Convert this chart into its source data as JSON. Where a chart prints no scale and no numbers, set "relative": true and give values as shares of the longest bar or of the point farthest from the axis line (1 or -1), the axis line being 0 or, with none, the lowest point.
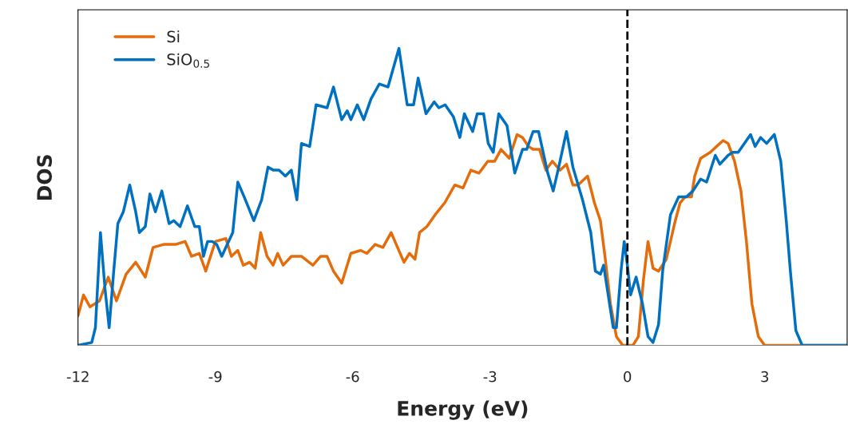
{
  "chart_data": {
    "type": "line",
    "relative": true,
    "xlabel": "Energy (eV)",
    "ylabel": "DOS",
    "xlim": [
      -12,
      4.8
    ],
    "xticks": [
      -12,
      -9,
      -6,
      -3,
      0,
      3
    ],
    "grid": false,
    "legend": "top left",
    "marker": "none",
    "line_style": "solid",
    "ref_lines": [
      {
        "axis": "x",
        "value": 0,
        "color": "#000000",
        "line_style": "dashed"
      }
    ],
    "series": [
      {
        "name": "Si",
        "color": "#e46c0a",
        "x": [
          -12.0,
          -11.88,
          -11.74,
          -11.53,
          -11.34,
          -11.16,
          -10.95,
          -10.74,
          -10.53,
          -10.36,
          -10.13,
          -9.87,
          -9.66,
          -9.52,
          -9.35,
          -9.21,
          -9.0,
          -8.77,
          -8.65,
          -8.51,
          -8.39,
          -8.25,
          -8.13,
          -8.01,
          -7.87,
          -7.74,
          -7.64,
          -7.52,
          -7.34,
          -7.12,
          -6.87,
          -6.7,
          -6.56,
          -6.42,
          -6.24,
          -6.04,
          -5.83,
          -5.69,
          -5.51,
          -5.34,
          -5.16,
          -5.02,
          -4.88,
          -4.76,
          -4.64,
          -4.54,
          -4.38,
          -4.2,
          -3.99,
          -3.77,
          -3.59,
          -3.42,
          -3.24,
          -3.05,
          -2.9,
          -2.76,
          -2.58,
          -2.41,
          -2.29,
          -2.16,
          -2.06,
          -1.92,
          -1.78,
          -1.64,
          -1.47,
          -1.33,
          -1.19,
          -1.08,
          -0.87,
          -0.72,
          -0.59,
          -0.49,
          -0.37,
          -0.24,
          -0.1,
          0.12,
          0.24,
          0.35,
          0.45,
          0.56,
          0.68,
          0.85,
          1.03,
          1.15,
          1.26,
          1.4,
          1.47,
          1.6,
          1.81,
          1.95,
          2.09,
          2.2,
          2.34,
          2.48,
          2.6,
          2.72,
          2.86,
          3.0,
          3.73,
          4.8
        ],
        "values": [
          0.1,
          0.17,
          0.13,
          0.15,
          0.23,
          0.15,
          0.24,
          0.28,
          0.23,
          0.33,
          0.34,
          0.34,
          0.35,
          0.3,
          0.31,
          0.25,
          0.35,
          0.36,
          0.3,
          0.32,
          0.27,
          0.28,
          0.26,
          0.38,
          0.3,
          0.27,
          0.31,
          0.27,
          0.3,
          0.3,
          0.27,
          0.3,
          0.3,
          0.25,
          0.21,
          0.31,
          0.32,
          0.31,
          0.34,
          0.33,
          0.38,
          0.33,
          0.28,
          0.31,
          0.29,
          0.38,
          0.4,
          0.44,
          0.48,
          0.54,
          0.53,
          0.59,
          0.58,
          0.62,
          0.62,
          0.66,
          0.63,
          0.71,
          0.7,
          0.67,
          0.66,
          0.66,
          0.59,
          0.62,
          0.59,
          0.61,
          0.54,
          0.54,
          0.57,
          0.48,
          0.42,
          0.3,
          0.14,
          0.03,
          0,
          0,
          0.03,
          0.22,
          0.35,
          0.26,
          0.25,
          0.29,
          0.41,
          0.48,
          0.5,
          0.5,
          0.57,
          0.63,
          0.65,
          0.67,
          0.69,
          0.68,
          0.62,
          0.52,
          0.35,
          0.14,
          0.03,
          0,
          0,
          0
        ]
      },
      {
        "name": "SiO$_{0.5}$",
        "color": "#0070c0",
        "x": [
          -12.0,
          -11.7,
          -11.62,
          -11.51,
          -11.41,
          -11.32,
          -11.22,
          -11.13,
          -11.01,
          -10.87,
          -10.74,
          -10.66,
          -10.53,
          -10.43,
          -10.31,
          -10.17,
          -10.01,
          -9.91,
          -9.77,
          -9.61,
          -9.45,
          -9.35,
          -9.26,
          -9.17,
          -9.07,
          -8.97,
          -8.86,
          -8.74,
          -8.62,
          -8.51,
          -8.37,
          -8.16,
          -7.99,
          -7.85,
          -7.73,
          -7.61,
          -7.47,
          -7.34,
          -7.22,
          -7.12,
          -6.94,
          -6.8,
          -6.56,
          -6.42,
          -6.24,
          -6.12,
          -6.04,
          -5.9,
          -5.76,
          -5.6,
          -5.42,
          -5.23,
          -4.99,
          -4.81,
          -4.67,
          -4.57,
          -4.4,
          -4.22,
          -4.12,
          -3.98,
          -3.8,
          -3.66,
          -3.56,
          -3.38,
          -3.28,
          -3.14,
          -3.04,
          -2.93,
          -2.81,
          -2.63,
          -2.46,
          -2.29,
          -2.2,
          -2.06,
          -1.94,
          -1.74,
          -1.62,
          -1.5,
          -1.33,
          -1.19,
          -0.98,
          -0.8,
          -0.7,
          -0.59,
          -0.52,
          -0.42,
          -0.31,
          -0.24,
          -0.14,
          -0.07,
          0.0,
          0.07,
          0.19,
          0.33,
          0.45,
          0.56,
          0.68,
          0.77,
          0.94,
          1.12,
          1.29,
          1.43,
          1.6,
          1.73,
          1.92,
          2.02,
          2.2,
          2.3,
          2.42,
          2.69,
          2.79,
          2.91,
          3.04,
          3.21,
          3.35,
          3.47,
          3.56,
          3.68,
          3.82,
          4.8
        ],
        "values": [
          0,
          0.01,
          0.06,
          0.38,
          0.19,
          0.06,
          0.25,
          0.41,
          0.45,
          0.54,
          0.45,
          0.38,
          0.4,
          0.51,
          0.45,
          0.52,
          0.41,
          0.42,
          0.4,
          0.47,
          0.4,
          0.4,
          0.3,
          0.35,
          0.35,
          0.34,
          0.3,
          0.34,
          0.38,
          0.55,
          0.5,
          0.42,
          0.49,
          0.6,
          0.59,
          0.59,
          0.57,
          0.59,
          0.49,
          0.68,
          0.67,
          0.81,
          0.8,
          0.87,
          0.76,
          0.79,
          0.76,
          0.81,
          0.76,
          0.83,
          0.88,
          0.87,
          1.0,
          0.81,
          0.81,
          0.9,
          0.78,
          0.82,
          0.8,
          0.81,
          0.77,
          0.7,
          0.78,
          0.72,
          0.78,
          0.78,
          0.68,
          0.65,
          0.78,
          0.74,
          0.58,
          0.66,
          0.66,
          0.72,
          0.72,
          0.58,
          0.52,
          0.6,
          0.72,
          0.6,
          0.49,
          0.38,
          0.25,
          0.24,
          0.27,
          0.17,
          0.06,
          0.06,
          0.25,
          0.35,
          0.27,
          0.17,
          0.23,
          0.14,
          0.03,
          0.01,
          0.07,
          0.25,
          0.44,
          0.5,
          0.5,
          0.52,
          0.56,
          0.55,
          0.64,
          0.61,
          0.64,
          0.65,
          0.65,
          0.71,
          0.67,
          0.7,
          0.68,
          0.71,
          0.62,
          0.42,
          0.25,
          0.05,
          0,
          0
        ]
      }
    ]
  }
}
